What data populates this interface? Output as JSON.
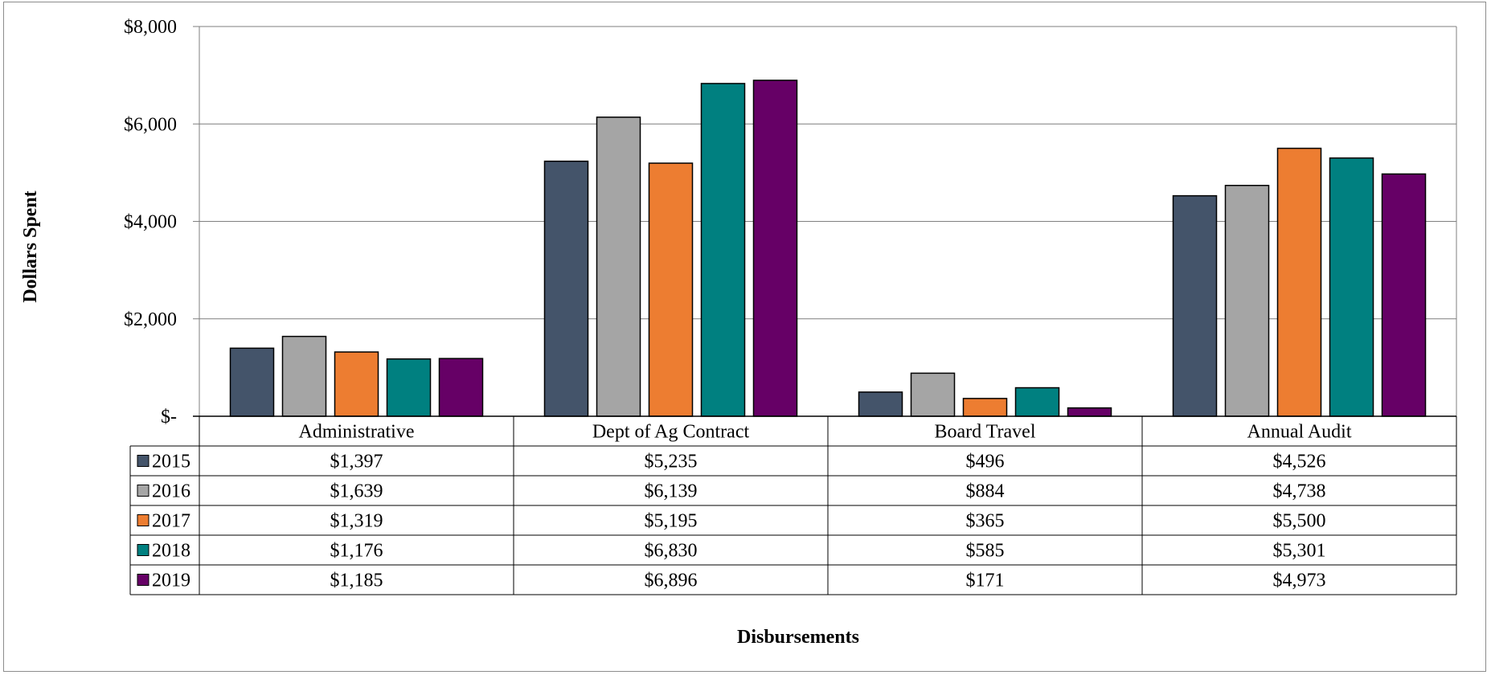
{
  "chart_data": {
    "type": "bar",
    "title": "",
    "xlabel": "Disbursements",
    "ylabel": "Dollars Spent",
    "categories": [
      "Administrative",
      "Dept of Ag Contract",
      "Board Travel",
      "Annual Audit"
    ],
    "series": [
      {
        "name": "2015",
        "color": "#44546a",
        "values": [
          1397,
          5235,
          496,
          4526
        ],
        "labels": [
          "$1,397",
          "$5,235",
          "$496",
          "$4,526"
        ]
      },
      {
        "name": "2016",
        "color": "#a5a5a5",
        "values": [
          1639,
          6139,
          884,
          4738
        ],
        "labels": [
          "$1,639",
          "$6,139",
          "$884",
          "$4,738"
        ]
      },
      {
        "name": "2017",
        "color": "#ed7d31",
        "values": [
          1319,
          5195,
          365,
          5500
        ],
        "labels": [
          "$1,319",
          "$5,195",
          "$365",
          "$5,500"
        ]
      },
      {
        "name": "2018",
        "color": "#008080",
        "values": [
          1176,
          6830,
          585,
          5301
        ],
        "labels": [
          "$1,176",
          "$6,830",
          "$585",
          "$5,301"
        ]
      },
      {
        "name": "2019",
        "color": "#660066",
        "values": [
          1185,
          6896,
          171,
          4973
        ],
        "labels": [
          "$1,185",
          "$6,896",
          "$171",
          "$4,973"
        ]
      }
    ],
    "ylim": [
      0,
      8000
    ],
    "yticks": [
      0,
      2000,
      4000,
      6000,
      8000
    ],
    "ytick_labels": [
      "$-",
      "$2,000",
      "$4,000",
      "$6,000",
      "$8,000"
    ],
    "grid": true,
    "legend": "data table"
  }
}
